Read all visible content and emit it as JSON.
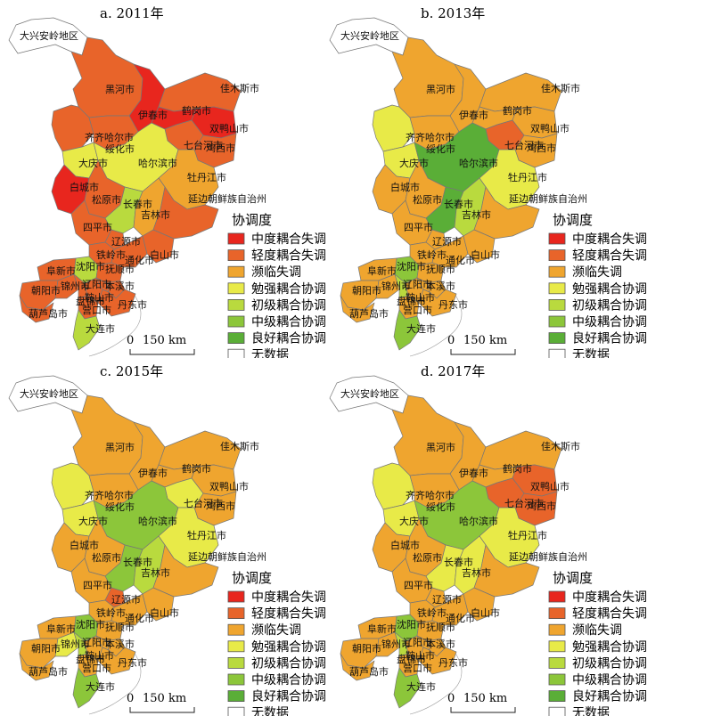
{
  "legend": {
    "title": "协调度",
    "items": [
      {
        "label": "中度耦合失调",
        "color": "#e8261e"
      },
      {
        "label": "轻度耦合失调",
        "color": "#e8642a"
      },
      {
        "label": "濒临失调",
        "color": "#efa52f"
      },
      {
        "label": "勉强耦合协调",
        "color": "#e8ea48"
      },
      {
        "label": "初级耦合协调",
        "color": "#b9da3e"
      },
      {
        "label": "中级耦合协调",
        "color": "#8cc63a"
      },
      {
        "label": "良好耦合协调",
        "color": "#5aae37"
      },
      {
        "label": "无数据",
        "color": "#ffffff"
      }
    ]
  },
  "scale": {
    "zero": "0",
    "distance": "150 km"
  },
  "region_labels": {
    "daxinganling": "大兴安岭地区",
    "heihe": "黑河市",
    "jiamusi": "佳木斯市",
    "yichun": "伊春市",
    "hegang": "鹤岗市",
    "shuangyashan": "双鸭山市",
    "qitaihe": "七台河市",
    "jixi": "鸡西市",
    "qiqihar": "齐齐哈尔市",
    "suihua": "绥化市",
    "daqing": "大庆市",
    "harbin": "哈尔滨市",
    "mudanjiang": "牡丹江市",
    "baicheng": "白城市",
    "songyuan": "松原市",
    "yanbian": "延边朝鲜族自治州",
    "changchun": "长春市",
    "jilin": "吉林市",
    "siping": "四平市",
    "liaoyuan": "辽源市",
    "tieling": "铁岭市",
    "tonghua": "通化市",
    "baishan": "白山市",
    "shenyang": "沈阳市",
    "fushun": "抚顺市",
    "fuxin": "阜新市",
    "chaoyang": "朝阳市",
    "jinzhou": "锦州市",
    "panjin": "盘锦市",
    "anshan": "鞍山市",
    "liaoyang": "辽阳市",
    "benxi": "本溪市",
    "dandong": "丹东市",
    "yingkou": "营口市",
    "huludao": "葫芦岛市",
    "dalian": "大连市"
  },
  "panels": [
    {
      "title": "a. 2011年",
      "colors": {
        "daxinganling": "#ffffff",
        "heihe": "#e8642a",
        "jiamusi": "#e8642a",
        "yichun": "#e8261e",
        "hegang": "#e8261e",
        "shuangyashan": "#e8261e",
        "qitaihe": "#e8642a",
        "jixi": "#e8642a",
        "qiqihar": "#e8642a",
        "suihua": "#e8642a",
        "daqing": "#e8ea48",
        "harbin": "#e8ea48",
        "mudanjiang": "#efa52f",
        "baicheng": "#e8261e",
        "songyuan": "#e8642a",
        "yanbian": "#e8642a",
        "changchun": "#b9da3e",
        "jilin": "#efa52f",
        "siping": "#e8642a",
        "liaoyuan": "#e8642a",
        "tieling": "#e8642a",
        "tonghua": "#e8642a",
        "baishan": "#e8642a",
        "shenyang": "#b9da3e",
        "fushun": "#e8642a",
        "fuxin": "#e8642a",
        "chaoyang": "#e8642a",
        "jinzhou": "#e8642a",
        "panjin": "#e8642a",
        "anshan": "#e8642a",
        "liaoyang": "#e8642a",
        "benxi": "#e8642a",
        "dandong": "#e8642a",
        "yingkou": "#e8642a",
        "huludao": "#e8642a",
        "dalian": "#b9da3e"
      }
    },
    {
      "title": "b. 2013年",
      "colors": {
        "daxinganling": "#ffffff",
        "heihe": "#efa52f",
        "jiamusi": "#efa52f",
        "yichun": "#efa52f",
        "hegang": "#efa52f",
        "shuangyashan": "#efa52f",
        "qitaihe": "#e8642a",
        "jixi": "#efa52f",
        "qiqihar": "#e8ea48",
        "suihua": "#efa52f",
        "daqing": "#e8ea48",
        "harbin": "#5aae37",
        "mudanjiang": "#e8ea48",
        "baicheng": "#efa52f",
        "songyuan": "#efa52f",
        "yanbian": "#efa52f",
        "changchun": "#5aae37",
        "jilin": "#b9da3e",
        "siping": "#efa52f",
        "liaoyuan": "#efa52f",
        "tieling": "#efa52f",
        "tonghua": "#efa52f",
        "baishan": "#efa52f",
        "shenyang": "#8cc63a",
        "fushun": "#efa52f",
        "fuxin": "#efa52f",
        "chaoyang": "#efa52f",
        "jinzhou": "#efa52f",
        "panjin": "#b9da3e",
        "anshan": "#efa52f",
        "liaoyang": "#efa52f",
        "benxi": "#efa52f",
        "dandong": "#efa52f",
        "yingkou": "#efa52f",
        "huludao": "#efa52f",
        "dalian": "#8cc63a"
      }
    },
    {
      "title": "c. 2015年",
      "colors": {
        "daxinganling": "#ffffff",
        "heihe": "#efa52f",
        "jiamusi": "#efa52f",
        "yichun": "#efa52f",
        "hegang": "#efa52f",
        "shuangyashan": "#efa52f",
        "qitaihe": "#e8ea48",
        "jixi": "#efa52f",
        "qiqihar": "#e8ea48",
        "suihua": "#efa52f",
        "daqing": "#e8ea48",
        "harbin": "#8cc63a",
        "mudanjiang": "#e8ea48",
        "baicheng": "#efa52f",
        "songyuan": "#efa52f",
        "yanbian": "#efa52f",
        "changchun": "#8cc63a",
        "jilin": "#b9da3e",
        "siping": "#efa52f",
        "liaoyuan": "#e8642a",
        "tieling": "#efa52f",
        "tonghua": "#efa52f",
        "baishan": "#efa52f",
        "shenyang": "#8cc63a",
        "fushun": "#efa52f",
        "fuxin": "#efa52f",
        "chaoyang": "#efa52f",
        "jinzhou": "#e8ea48",
        "panjin": "#b9da3e",
        "anshan": "#efa52f",
        "liaoyang": "#efa52f",
        "benxi": "#efa52f",
        "dandong": "#efa52f",
        "yingkou": "#efa52f",
        "huludao": "#efa52f",
        "dalian": "#8cc63a"
      }
    },
    {
      "title": "d. 2017年",
      "colors": {
        "daxinganling": "#ffffff",
        "heihe": "#efa52f",
        "jiamusi": "#efa52f",
        "yichun": "#efa52f",
        "hegang": "#efa52f",
        "shuangyashan": "#e8642a",
        "qitaihe": "#e8642a",
        "jixi": "#e8642a",
        "qiqihar": "#e8ea48",
        "suihua": "#efa52f",
        "daqing": "#e8ea48",
        "harbin": "#8cc63a",
        "mudanjiang": "#e8ea48",
        "baicheng": "#efa52f",
        "songyuan": "#efa52f",
        "yanbian": "#efa52f",
        "changchun": "#e8ea48",
        "jilin": "#e8ea48",
        "siping": "#efa52f",
        "liaoyuan": "#efa52f",
        "tieling": "#efa52f",
        "tonghua": "#efa52f",
        "baishan": "#efa52f",
        "shenyang": "#8cc63a",
        "fushun": "#efa52f",
        "fuxin": "#efa52f",
        "chaoyang": "#efa52f",
        "jinzhou": "#efa52f",
        "panjin": "#b9da3e",
        "anshan": "#efa52f",
        "liaoyang": "#efa52f",
        "benxi": "#efa52f",
        "dandong": "#efa52f",
        "yingkou": "#efa52f",
        "huludao": "#efa52f",
        "dalian": "#8cc63a"
      }
    }
  ]
}
